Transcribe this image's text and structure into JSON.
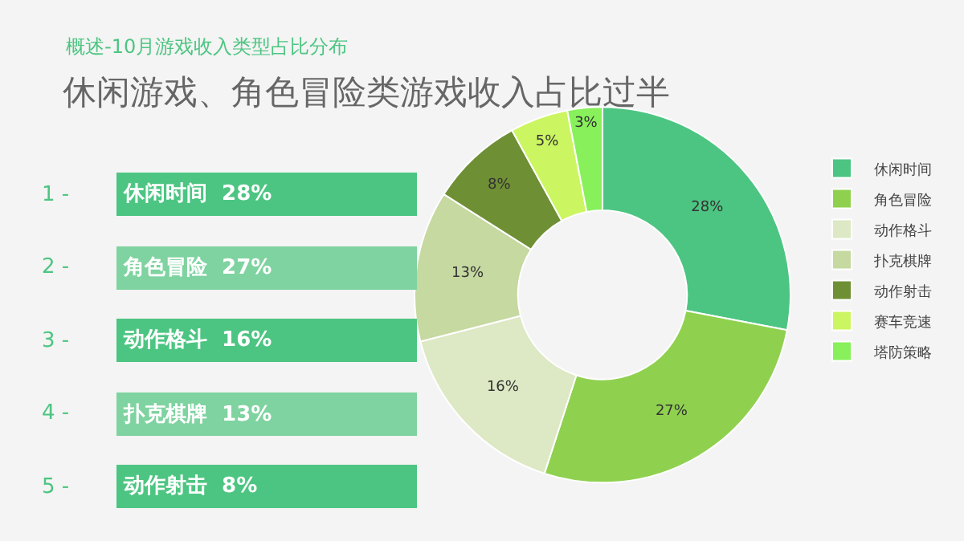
{
  "chart_data": {
    "type": "donut",
    "subtitle": "概述-10月游戏收入类型占比分布",
    "title": "休闲游戏、角色冒险类游戏收入占比过半",
    "categories": [
      "休闲时间",
      "角色冒险",
      "动作格斗",
      "扑克棋牌",
      "动作射击",
      "赛车竞速",
      "塔防策略"
    ],
    "values": [
      28,
      27,
      16,
      13,
      8,
      5,
      3
    ],
    "colors": [
      "#4dc582",
      "#8fd14f",
      "#dde8c4",
      "#c5d9a0",
      "#6f8f35",
      "#ccf562",
      "#88f05a"
    ],
    "value_labels": [
      "28%",
      "27%",
      "16%",
      "13%",
      "8%",
      "5%",
      "3%"
    ],
    "legend": "right",
    "annotations": [
      "1 -",
      "休闲时间  28%",
      "2 -",
      "角色冒险  27%",
      "3 -",
      "动作格斗  16%",
      "4 -",
      "扑克棋牌  13%",
      "5 -",
      "动作射击  8%"
    ]
  }
}
